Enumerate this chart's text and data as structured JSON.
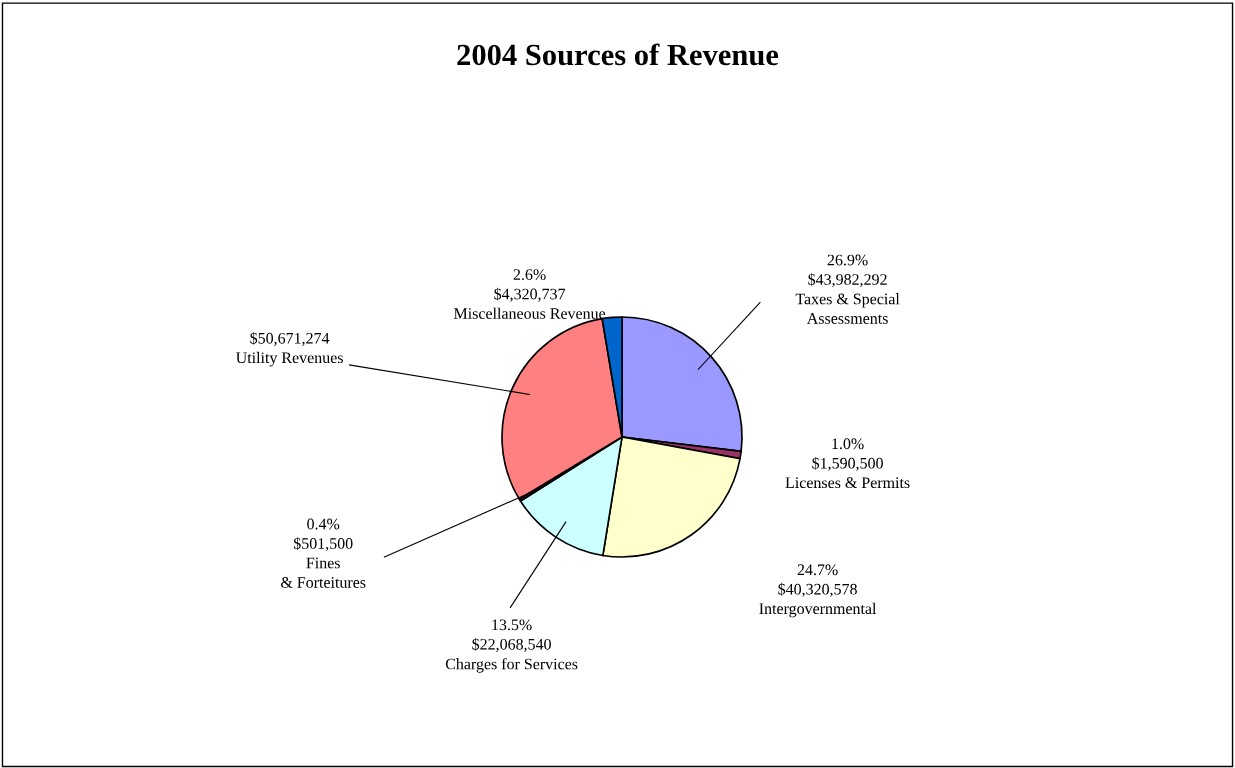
{
  "chart_data": {
    "type": "pie",
    "title": "2004 Sources of Revenue",
    "categories": [
      "Taxes & Special\nAssessments",
      "Licenses & Permits",
      "Intergovernmental",
      "Charges for Services",
      "Fines\n& Forteitures",
      "Utility Revenues",
      "Miscellaneous Revenue"
    ],
    "values": [
      43982292,
      1590500,
      40320578,
      22068540,
      501500,
      50671274,
      4320737
    ],
    "colors": [
      "#9999ff",
      "#993366",
      "#ffffcc",
      "#ccffff",
      "#660066",
      "#ff8080",
      "#0066cc"
    ],
    "value_labels": [
      "26.9%\n$43,982,292",
      "1.0%\n$1,590,500",
      "24.7%\n$40,320,578",
      "13.5%\n$22,068,540",
      "0.4%\n$501,500",
      "$50,671,274",
      "2.6%\n$4,320,737"
    ]
  }
}
